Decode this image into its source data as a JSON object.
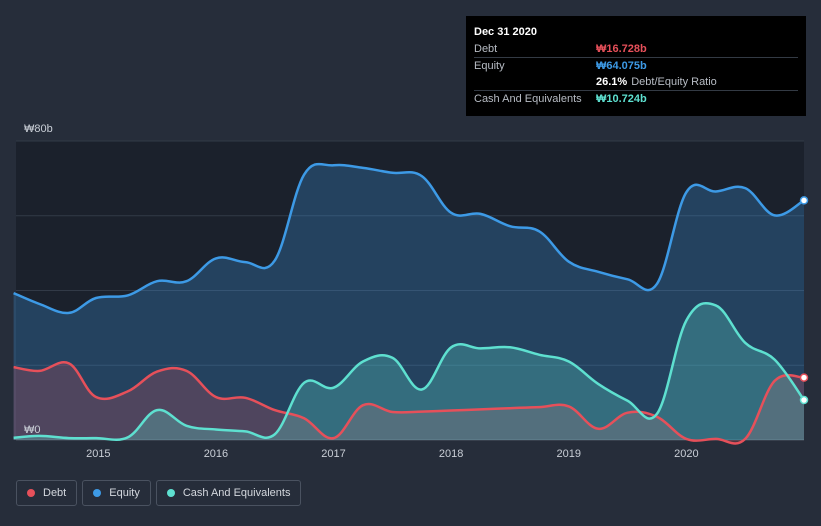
{
  "tooltip": {
    "date": "Dec 31 2020",
    "rows": [
      {
        "label": "Debt",
        "value": "₩16.728b",
        "color": "#e6505a"
      },
      {
        "label": "Equity",
        "value": "₩64.075b",
        "color": "#3d9ae6"
      },
      {
        "label": "",
        "value": "26.1%",
        "suffix": "Debt/Equity Ratio",
        "color": "#ffffff"
      },
      {
        "label": "Cash And Equivalents",
        "value": "₩10.724b",
        "color": "#5ee0d0"
      }
    ]
  },
  "legend": [
    {
      "label": "Debt",
      "color": "#e6505a"
    },
    {
      "label": "Equity",
      "color": "#3d9ae6"
    },
    {
      "label": "Cash And Equivalents",
      "color": "#5ee0d0"
    }
  ],
  "chart_data": {
    "type": "area",
    "title": "",
    "xlabel": "",
    "ylabel": "",
    "y_unit": "₩ billions",
    "ylim": [
      0,
      80
    ],
    "xlim": [
      2014.3,
      2021.0
    ],
    "y_tick_labels": [
      {
        "value": 80,
        "label": "₩80b"
      },
      {
        "value": 0,
        "label": "₩0"
      }
    ],
    "gridlines": [
      0,
      20,
      40,
      60,
      80
    ],
    "x_ticks": [
      {
        "value": 2015,
        "label": "2015"
      },
      {
        "value": 2016,
        "label": "2016"
      },
      {
        "value": 2017,
        "label": "2017"
      },
      {
        "value": 2018,
        "label": "2018"
      },
      {
        "value": 2019,
        "label": "2019"
      },
      {
        "value": 2020,
        "label": "2020"
      }
    ],
    "series": [
      {
        "name": "Equity",
        "color": "#3d9ae6",
        "points": [
          [
            2014.28,
            39.3
          ],
          [
            2014.5,
            36.4
          ],
          [
            2014.75,
            34.0
          ],
          [
            2014.98,
            38.0
          ],
          [
            2015.25,
            38.7
          ],
          [
            2015.5,
            42.5
          ],
          [
            2015.75,
            42.5
          ],
          [
            2016.0,
            48.6
          ],
          [
            2016.25,
            47.6
          ],
          [
            2016.5,
            48.0
          ],
          [
            2016.75,
            71.0
          ],
          [
            2017.0,
            73.5
          ],
          [
            2017.25,
            72.8
          ],
          [
            2017.5,
            71.5
          ],
          [
            2017.75,
            70.6
          ],
          [
            2018.0,
            60.8
          ],
          [
            2018.25,
            60.5
          ],
          [
            2018.5,
            57.2
          ],
          [
            2018.75,
            55.8
          ],
          [
            2019.0,
            47.7
          ],
          [
            2019.25,
            45.0
          ],
          [
            2019.5,
            43.0
          ],
          [
            2019.75,
            41.8
          ],
          [
            2020.0,
            66.3
          ],
          [
            2020.25,
            66.5
          ],
          [
            2020.5,
            67.4
          ],
          [
            2020.75,
            60.1
          ],
          [
            2021.0,
            64.1
          ]
        ]
      },
      {
        "name": "Debt",
        "color": "#e6505a",
        "points": [
          [
            2014.28,
            19.5
          ],
          [
            2014.5,
            18.5
          ],
          [
            2014.75,
            20.5
          ],
          [
            2014.98,
            11.5
          ],
          [
            2015.25,
            13.0
          ],
          [
            2015.5,
            18.3
          ],
          [
            2015.75,
            18.5
          ],
          [
            2016.0,
            11.5
          ],
          [
            2016.25,
            11.3
          ],
          [
            2016.5,
            8.0
          ],
          [
            2016.75,
            5.8
          ],
          [
            2017.0,
            0.5
          ],
          [
            2017.25,
            9.3
          ],
          [
            2017.5,
            7.5
          ],
          [
            2017.75,
            7.6
          ],
          [
            2018.0,
            7.9
          ],
          [
            2018.25,
            8.2
          ],
          [
            2018.5,
            8.5
          ],
          [
            2018.75,
            8.8
          ],
          [
            2019.0,
            9.0
          ],
          [
            2019.25,
            3.0
          ],
          [
            2019.5,
            7.3
          ],
          [
            2019.75,
            6.2
          ],
          [
            2020.0,
            0.3
          ],
          [
            2020.25,
            0.3
          ],
          [
            2020.5,
            0.3
          ],
          [
            2020.75,
            15.8
          ],
          [
            2021.0,
            16.7
          ]
        ]
      },
      {
        "name": "Cash And Equivalents",
        "color": "#5ee0d0",
        "points": [
          [
            2014.28,
            0.6
          ],
          [
            2014.5,
            1.1
          ],
          [
            2014.75,
            0.5
          ],
          [
            2014.98,
            0.5
          ],
          [
            2015.25,
            0.7
          ],
          [
            2015.5,
            8.0
          ],
          [
            2015.75,
            3.8
          ],
          [
            2016.0,
            2.8
          ],
          [
            2016.25,
            2.3
          ],
          [
            2016.5,
            1.5
          ],
          [
            2016.75,
            15.3
          ],
          [
            2017.0,
            14.0
          ],
          [
            2017.25,
            21.0
          ],
          [
            2017.5,
            22.0
          ],
          [
            2017.75,
            13.5
          ],
          [
            2018.0,
            24.8
          ],
          [
            2018.25,
            24.5
          ],
          [
            2018.5,
            24.8
          ],
          [
            2018.75,
            22.8
          ],
          [
            2019.0,
            21.0
          ],
          [
            2019.25,
            15.0
          ],
          [
            2019.5,
            10.5
          ],
          [
            2019.75,
            7.0
          ],
          [
            2020.0,
            32.0
          ],
          [
            2020.25,
            36.0
          ],
          [
            2020.5,
            26.0
          ],
          [
            2020.75,
            21.5
          ],
          [
            2021.0,
            10.7
          ]
        ]
      }
    ]
  }
}
